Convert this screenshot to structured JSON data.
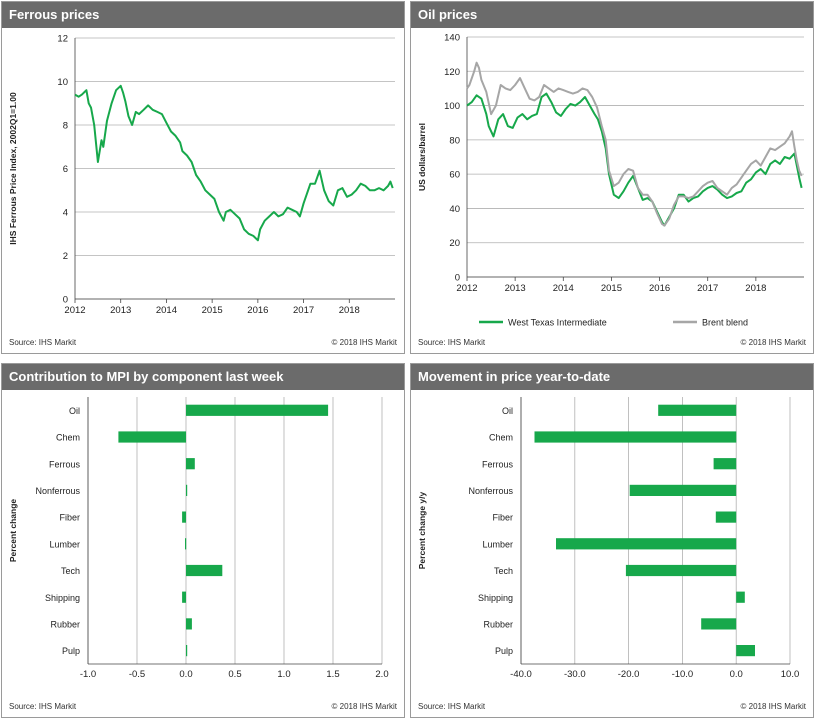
{
  "colors": {
    "header_bg": "#6b6b6b",
    "green": "#17a84b",
    "grey": "#a6a6a6",
    "grid": "#b0b0b0"
  },
  "panels": {
    "ferrous": {
      "title": "Ferrous prices",
      "source": "Source:  IHS Markit",
      "copyright": "© 2018  IHS Markit"
    },
    "oil": {
      "title": "Oil prices",
      "source": "Source:  IHS Markit",
      "copyright": "© 2018  IHS Markit"
    },
    "contribution": {
      "title": "Contribution  to MPI by component last week",
      "source": "Source:  IHS Markit",
      "copyright": "© 2018  IHS Markit"
    },
    "movement": {
      "title": "Movement in price year-to-date",
      "source": "Source:  IHS Markit",
      "copyright": "© 2018  IHS Markit"
    }
  },
  "chart_data": [
    {
      "type": "line",
      "ylabel": "IHS Ferrous Price Index, 2002Q1=1.00",
      "ylim": [
        0,
        12
      ],
      "yticks": [
        "0",
        "2",
        "4",
        "6",
        "8",
        "10",
        "12"
      ],
      "xlim": [
        2012.0,
        2019.0
      ],
      "xticks": [
        "2012",
        "2013",
        "2014",
        "2015",
        "2016",
        "2017",
        "2018"
      ],
      "grid": "horizontal",
      "series": [
        {
          "x": [
            2012.0,
            2012.08,
            2012.15,
            2012.2,
            2012.25,
            2012.3,
            2012.35,
            2012.42,
            2012.5,
            2012.58,
            2012.62,
            2012.7,
            2012.8,
            2012.9,
            2013.0,
            2013.05,
            2013.1,
            2013.17,
            2013.25,
            2013.33,
            2013.4,
            2013.5,
            2013.6,
            2013.7,
            2013.8,
            2013.9,
            2014.0,
            2014.1,
            2014.2,
            2014.3,
            2014.35,
            2014.45,
            2014.55,
            2014.65,
            2014.75,
            2014.85,
            2014.95,
            2015.05,
            2015.15,
            2015.25,
            2015.3,
            2015.4,
            2015.5,
            2015.6,
            2015.7,
            2015.8,
            2015.9,
            2016.0,
            2016.05,
            2016.15,
            2016.25,
            2016.35,
            2016.45,
            2016.55,
            2016.65,
            2016.75,
            2016.85,
            2016.92,
            2017.0,
            2017.1,
            2017.15,
            2017.25,
            2017.35,
            2017.45,
            2017.55,
            2017.65,
            2017.75,
            2017.85,
            2017.95,
            2018.05,
            2018.15,
            2018.25,
            2018.35,
            2018.45,
            2018.55,
            2018.65,
            2018.75,
            2018.85,
            2018.9,
            2018.95
          ],
          "values": [
            9.4,
            9.3,
            9.4,
            9.5,
            9.6,
            9.0,
            8.8,
            8.0,
            6.3,
            7.3,
            7.0,
            8.2,
            9.0,
            9.6,
            9.8,
            9.5,
            9.1,
            8.4,
            8.0,
            8.6,
            8.5,
            8.7,
            8.9,
            8.7,
            8.6,
            8.5,
            8.1,
            7.7,
            7.5,
            7.2,
            6.8,
            6.6,
            6.3,
            5.7,
            5.4,
            5.0,
            4.8,
            4.6,
            4.0,
            3.6,
            4.0,
            4.1,
            3.9,
            3.7,
            3.2,
            3.0,
            2.9,
            2.7,
            3.2,
            3.6,
            3.8,
            4.0,
            3.8,
            3.9,
            4.2,
            4.1,
            4.0,
            3.8,
            4.4,
            5.0,
            5.3,
            5.3,
            5.9,
            5.0,
            4.5,
            4.3,
            5.0,
            5.1,
            4.7,
            4.8,
            5.0,
            5.3,
            5.2,
            5.0,
            5.0,
            5.1,
            5.0,
            5.2,
            5.4,
            5.1
          ],
          "color": "#17a84b"
        }
      ]
    },
    {
      "type": "line",
      "ylabel": "US dollars/barrel",
      "ylim": [
        0,
        140
      ],
      "yticks": [
        "0",
        "20",
        "40",
        "60",
        "80",
        "100",
        "120",
        "140"
      ],
      "xlim": [
        2012.0,
        2019.0
      ],
      "xticks": [
        "2012",
        "2013",
        "2014",
        "2015",
        "2016",
        "2017",
        "2018"
      ],
      "grid": "horizontal",
      "legend_position": "bottom",
      "series": [
        {
          "name": "West Texas Intermediate",
          "color": "#17a84b",
          "x": [
            2012.0,
            2012.1,
            2012.2,
            2012.3,
            2012.4,
            2012.45,
            2012.55,
            2012.65,
            2012.75,
            2012.85,
            2012.95,
            2013.05,
            2013.15,
            2013.25,
            2013.35,
            2013.45,
            2013.55,
            2013.65,
            2013.75,
            2013.85,
            2013.95,
            2014.05,
            2014.15,
            2014.25,
            2014.35,
            2014.45,
            2014.55,
            2014.65,
            2014.72,
            2014.8,
            2014.88,
            2014.95,
            2015.05,
            2015.15,
            2015.25,
            2015.35,
            2015.45,
            2015.55,
            2015.65,
            2015.75,
            2015.85,
            2015.95,
            2016.05,
            2016.1,
            2016.2,
            2016.3,
            2016.4,
            2016.5,
            2016.6,
            2016.7,
            2016.8,
            2016.9,
            2017.0,
            2017.1,
            2017.2,
            2017.3,
            2017.4,
            2017.5,
            2017.6,
            2017.7,
            2017.8,
            2017.9,
            2018.0,
            2018.1,
            2018.2,
            2018.3,
            2018.4,
            2018.5,
            2018.6,
            2018.7,
            2018.8,
            2018.85,
            2018.9,
            2018.95
          ],
          "values": [
            100,
            102,
            106,
            104,
            95,
            88,
            82,
            92,
            95,
            88,
            87,
            93,
            95,
            92,
            94,
            95,
            105,
            107,
            102,
            96,
            94,
            98,
            101,
            100,
            102,
            105,
            100,
            95,
            92,
            85,
            75,
            60,
            48,
            46,
            50,
            55,
            59,
            52,
            45,
            46,
            44,
            38,
            32,
            30,
            35,
            40,
            48,
            48,
            44,
            46,
            47,
            50,
            52,
            53,
            51,
            48,
            46,
            47,
            49,
            50,
            55,
            57,
            61,
            63,
            60,
            66,
            68,
            66,
            70,
            69,
            72,
            65,
            58,
            52
          ]
        },
        {
          "name": "Brent blend",
          "color": "#a6a6a6",
          "x": [
            2012.0,
            2012.05,
            2012.15,
            2012.2,
            2012.25,
            2012.3,
            2012.4,
            2012.5,
            2012.6,
            2012.7,
            2012.8,
            2012.9,
            2013.0,
            2013.1,
            2013.2,
            2013.3,
            2013.4,
            2013.5,
            2013.6,
            2013.7,
            2013.8,
            2013.9,
            2014.0,
            2014.1,
            2014.2,
            2014.3,
            2014.4,
            2014.5,
            2014.6,
            2014.7,
            2014.8,
            2014.88,
            2014.95,
            2015.05,
            2015.15,
            2015.25,
            2015.35,
            2015.45,
            2015.55,
            2015.65,
            2015.75,
            2015.85,
            2015.95,
            2016.05,
            2016.1,
            2016.2,
            2016.3,
            2016.4,
            2016.5,
            2016.6,
            2016.7,
            2016.8,
            2016.9,
            2017.0,
            2017.1,
            2017.2,
            2017.3,
            2017.4,
            2017.5,
            2017.6,
            2017.7,
            2017.8,
            2017.9,
            2018.0,
            2018.1,
            2018.2,
            2018.3,
            2018.4,
            2018.5,
            2018.6,
            2018.7,
            2018.75,
            2018.8,
            2018.85,
            2018.9,
            2018.95
          ],
          "values": [
            110,
            112,
            120,
            125,
            122,
            115,
            108,
            95,
            100,
            112,
            110,
            109,
            112,
            116,
            110,
            104,
            103,
            105,
            112,
            110,
            108,
            110,
            109,
            108,
            107,
            108,
            110,
            109,
            105,
            99,
            88,
            80,
            62,
            53,
            55,
            60,
            63,
            62,
            52,
            48,
            48,
            44,
            37,
            31,
            30,
            34,
            42,
            47,
            47,
            46,
            47,
            50,
            53,
            55,
            56,
            52,
            50,
            48,
            52,
            54,
            58,
            62,
            66,
            68,
            65,
            70,
            75,
            74,
            76,
            78,
            82,
            85,
            76,
            68,
            62,
            59
          ]
        }
      ]
    },
    {
      "type": "bar",
      "orientation": "horizontal",
      "ylabel": "Percent change",
      "categories": [
        "Oil",
        "Chem",
        "Ferrous",
        "Nonferrous",
        "Fiber",
        "Lumber",
        "Tech",
        "Shipping",
        "Rubber",
        "Pulp"
      ],
      "values": [
        1.45,
        -0.69,
        0.09,
        0.01,
        -0.04,
        -0.01,
        0.37,
        -0.04,
        0.06,
        0.0
      ],
      "xlim": [
        -1.0,
        2.0
      ],
      "xticks": [
        "-1.0",
        "-0.5",
        "0.0",
        "0.5",
        "1.0",
        "1.5",
        "2.0"
      ],
      "grid": "vertical",
      "color": "#17a84b"
    },
    {
      "type": "bar",
      "orientation": "horizontal",
      "ylabel": "Percent change y/y",
      "categories": [
        "Oil",
        "Chem",
        "Ferrous",
        "Nonferrous",
        "Fiber",
        "Lumber",
        "Tech",
        "Shipping",
        "Rubber",
        "Pulp"
      ],
      "values": [
        -14.5,
        -37.5,
        -4.2,
        -19.8,
        -3.8,
        -33.5,
        -20.5,
        1.6,
        -6.5,
        3.5
      ],
      "xlim": [
        -40.0,
        10.0
      ],
      "xticks": [
        "-40.0",
        "-30.0",
        "-20.0",
        "-10.0",
        "0.0",
        "10.0"
      ],
      "grid": "vertical",
      "color": "#17a84b"
    }
  ]
}
